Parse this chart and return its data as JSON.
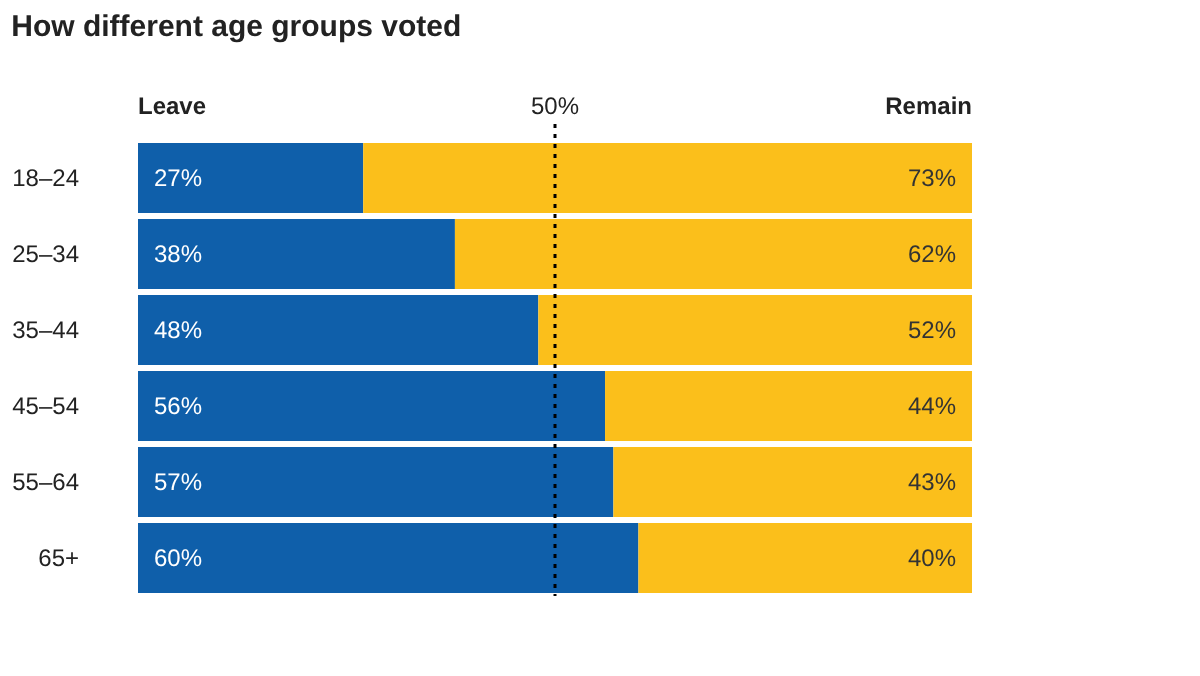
{
  "chart_data": {
    "type": "bar",
    "title": "How different age groups voted",
    "orientation": "horizontal",
    "stacked": true,
    "categories": [
      "18–24",
      "25–34",
      "35–44",
      "45–54",
      "55–64",
      "65+"
    ],
    "series": [
      {
        "name": "Leave",
        "color": "#0f5faa",
        "values": [
          27,
          38,
          48,
          56,
          57,
          60
        ],
        "value_labels": [
          "27%",
          "38%",
          "48%",
          "56%",
          "57%",
          "60%"
        ]
      },
      {
        "name": "Remain",
        "color": "#fbbf1b",
        "values": [
          73,
          62,
          52,
          44,
          43,
          40
        ],
        "value_labels": [
          "73%",
          "62%",
          "52%",
          "44%",
          "43%",
          "40%"
        ]
      }
    ],
    "tick_labels": "y",
    "grid": false,
    "ref_lines": [
      {
        "axis": "x",
        "value": 50,
        "label": "50%",
        "color": "#000000",
        "line_style": "dotted"
      }
    ]
  }
}
